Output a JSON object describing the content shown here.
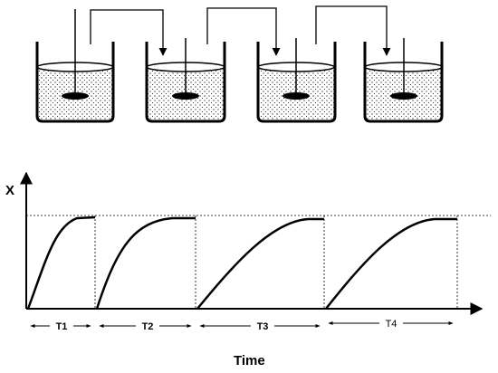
{
  "axes": {
    "y_label": "X",
    "x_label": "Time"
  },
  "periods": [
    {
      "label": "T1"
    },
    {
      "label": "T2"
    },
    {
      "label": "T3"
    },
    {
      "label": "T4"
    }
  ],
  "tanks": [
    {
      "name": "tank-1",
      "feed": "none"
    },
    {
      "name": "tank-2",
      "feed": "from tank-1"
    },
    {
      "name": "tank-3",
      "feed": "from tank-2"
    },
    {
      "name": "tank-4",
      "feed": "from tank-3"
    }
  ],
  "colors": {
    "stroke": "#000000",
    "liquid_dots": "#000000",
    "background": "#ffffff"
  }
}
